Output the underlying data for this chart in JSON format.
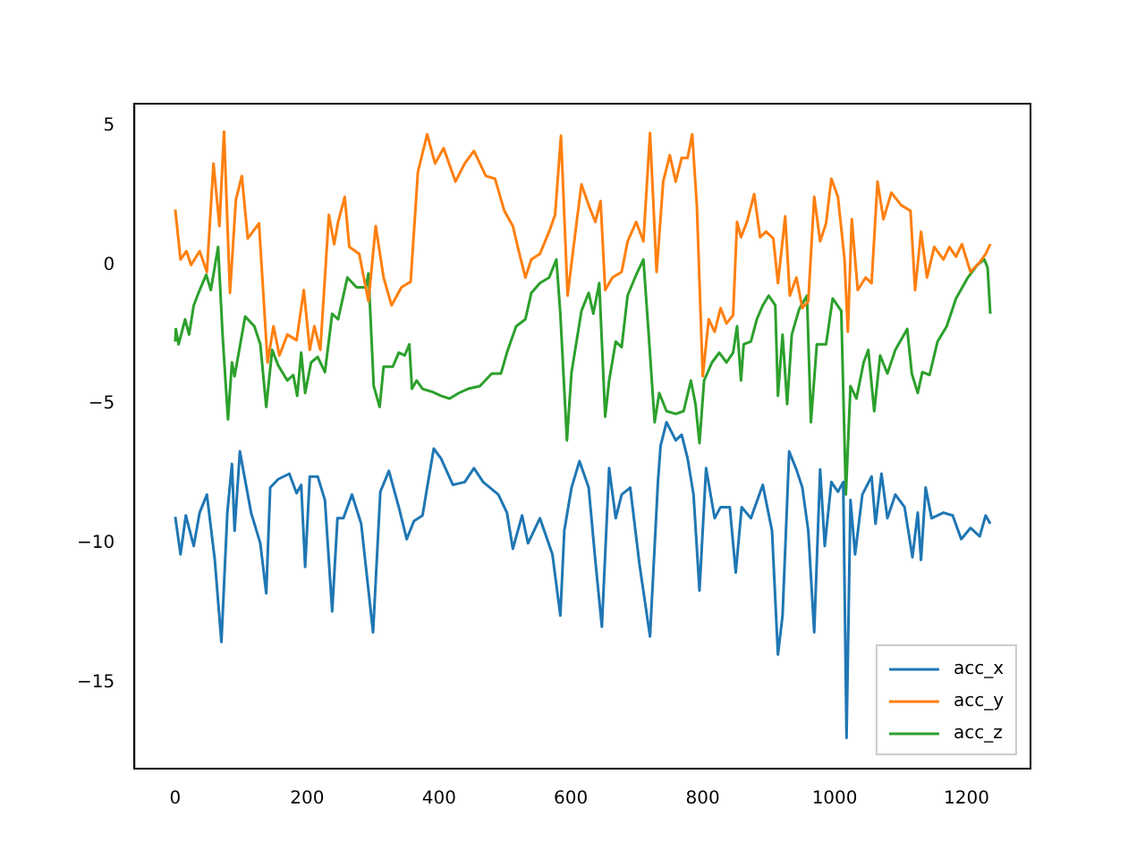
{
  "chart_data": {
    "type": "line",
    "xlim": [
      -62,
      1297
    ],
    "ylim": [
      -18.1,
      5.8
    ],
    "xticks": [
      0,
      200,
      400,
      600,
      800,
      1000,
      1200
    ],
    "yticks": [
      -15,
      -10,
      -5,
      0,
      5
    ],
    "grid": false,
    "legend": "bottom right",
    "series": [
      {
        "name": "acc_x",
        "color": "#1f77b4",
        "x": [
          0,
          8,
          16,
          28,
          37,
          48,
          60,
          70,
          79,
          86,
          90,
          98,
          115,
          129,
          138,
          144,
          156,
          173,
          184,
          191,
          197,
          204,
          216,
          227,
          238,
          246,
          255,
          268,
          282,
          300,
          311,
          324,
          339,
          351,
          362,
          375,
          382,
          392,
          403,
          421,
          439,
          453,
          467,
          490,
          503,
          512,
          526,
          535,
          553,
          572,
          584,
          590,
          601,
          613,
          627,
          637,
          647,
          658,
          668,
          677,
          690,
          704,
          720,
          732,
          736,
          745,
          759,
          768,
          777,
          786,
          795,
          805,
          818,
          827,
          841,
          850,
          859,
          873,
          891,
          905,
          914,
          921,
          931,
          942,
          951,
          960,
          969,
          978,
          985,
          995,
          1005,
          1013,
          1018,
          1024,
          1031,
          1042,
          1056,
          1062,
          1071,
          1080,
          1092,
          1106,
          1118,
          1126,
          1131,
          1138,
          1147,
          1165,
          1179,
          1192,
          1206,
          1220,
          1229,
          1236
        ],
        "values": [
          -9.05,
          -10.4,
          -9.0,
          -10.1,
          -8.9,
          -8.25,
          -10.6,
          -13.55,
          -8.9,
          -7.15,
          -9.55,
          -6.7,
          -8.9,
          -10.0,
          -11.8,
          -8.0,
          -7.7,
          -7.5,
          -8.2,
          -7.9,
          -10.85,
          -7.6,
          -7.6,
          -8.45,
          -12.45,
          -9.1,
          -9.1,
          -8.25,
          -9.3,
          -13.2,
          -8.15,
          -7.4,
          -8.7,
          -9.85,
          -9.2,
          -9.0,
          -8.0,
          -6.6,
          -6.95,
          -7.9,
          -7.8,
          -7.3,
          -7.8,
          -8.25,
          -8.9,
          -10.2,
          -9.0,
          -10.0,
          -9.1,
          -10.4,
          -12.6,
          -9.55,
          -8.0,
          -7.05,
          -8.0,
          -10.6,
          -13.0,
          -7.3,
          -9.1,
          -8.25,
          -8.0,
          -10.75,
          -13.35,
          -7.8,
          -6.5,
          -5.65,
          -6.3,
          -6.1,
          -6.95,
          -8.25,
          -11.7,
          -7.3,
          -9.1,
          -8.7,
          -8.7,
          -11.05,
          -8.7,
          -9.1,
          -7.9,
          -9.55,
          -14.0,
          -12.6,
          -6.7,
          -7.35,
          -8.0,
          -9.55,
          -13.2,
          -7.35,
          -10.1,
          -7.8,
          -8.15,
          -7.8,
          -17.0,
          -8.45,
          -10.4,
          -8.25,
          -7.6,
          -9.3,
          -7.5,
          -9.1,
          -8.25,
          -8.7,
          -10.5,
          -8.9,
          -10.6,
          -8.0,
          -9.1,
          -8.9,
          -9.0,
          -9.85,
          -9.45,
          -9.75,
          -9.0,
          -9.3
        ]
      },
      {
        "name": "acc_y",
        "color": "#ff7f0e",
        "x": [
          0,
          8,
          17,
          24,
          37,
          48,
          58,
          67,
          74,
          83,
          92,
          101,
          110,
          127,
          140,
          149,
          158,
          170,
          184,
          195,
          204,
          211,
          220,
          233,
          241,
          247,
          257,
          264,
          279,
          293,
          304,
          316,
          328,
          343,
          357,
          368,
          382,
          394,
          407,
          425,
          439,
          453,
          471,
          485,
          499,
          512,
          521,
          531,
          540,
          553,
          567,
          576,
          585,
          595,
          604,
          616,
          627,
          637,
          645,
          652,
          663,
          677,
          686,
          699,
          710,
          720,
          730,
          740,
          750,
          759,
          768,
          777,
          784,
          791,
          800,
          809,
          818,
          827,
          836,
          846,
          852,
          858,
          867,
          878,
          887,
          896,
          907,
          914,
          925,
          932,
          942,
          951,
          960,
          969,
          978,
          987,
          995,
          1005,
          1015,
          1020,
          1026,
          1035,
          1047,
          1056,
          1065,
          1074,
          1086,
          1101,
          1115,
          1122,
          1131,
          1140,
          1151,
          1165,
          1174,
          1184,
          1193,
          1206,
          1220,
          1229,
          1236
        ],
        "values": [
          2.0,
          0.2,
          0.5,
          0.0,
          0.5,
          -0.25,
          3.65,
          1.4,
          4.8,
          -1.0,
          2.35,
          3.2,
          0.95,
          1.5,
          -3.5,
          -2.2,
          -3.25,
          -2.5,
          -2.7,
          -0.9,
          -3.05,
          -2.2,
          -3.05,
          1.8,
          0.75,
          1.55,
          2.45,
          0.65,
          0.4,
          -1.3,
          1.4,
          -0.45,
          -1.45,
          -0.8,
          -0.6,
          3.35,
          4.7,
          3.65,
          4.2,
          3.0,
          3.65,
          4.1,
          3.2,
          3.1,
          1.95,
          1.4,
          0.5,
          -0.45,
          0.2,
          0.4,
          1.2,
          1.8,
          4.65,
          -1.1,
          0.65,
          2.9,
          2.15,
          1.55,
          2.3,
          -0.9,
          -0.45,
          -0.25,
          0.85,
          1.55,
          0.85,
          4.75,
          -0.25,
          3.0,
          3.95,
          3.0,
          3.85,
          3.85,
          4.7,
          2.15,
          -4.0,
          -1.95,
          -2.4,
          -1.55,
          -2.1,
          -1.8,
          1.55,
          1.0,
          1.55,
          2.55,
          1.0,
          1.2,
          0.95,
          -0.65,
          1.75,
          -1.1,
          -0.45,
          -1.55,
          -1.3,
          2.45,
          0.85,
          1.5,
          3.1,
          2.45,
          0.2,
          -2.4,
          1.65,
          -0.9,
          -0.45,
          -0.65,
          3.0,
          1.65,
          2.6,
          2.15,
          1.95,
          -0.9,
          1.2,
          -0.45,
          0.65,
          0.2,
          0.65,
          0.3,
          0.75,
          -0.25,
          0.1,
          0.4,
          0.75
        ]
      },
      {
        "name": "acc_z",
        "color": "#2ca02c",
        "x": [
          0,
          1,
          5,
          15,
          21,
          28,
          37,
          47,
          54,
          65,
          72,
          80,
          86,
          90,
          106,
          120,
          129,
          138,
          147,
          156,
          170,
          179,
          185,
          191,
          197,
          206,
          216,
          227,
          238,
          247,
          261,
          275,
          289,
          293,
          301,
          310,
          316,
          330,
          339,
          348,
          355,
          359,
          366,
          375,
          389,
          403,
          416,
          430,
          444,
          462,
          480,
          494,
          503,
          517,
          531,
          540,
          553,
          567,
          578,
          584,
          594,
          601,
          616,
          627,
          634,
          643,
          652,
          658,
          668,
          677,
          686,
          699,
          710,
          718,
          727,
          734,
          745,
          759,
          771,
          782,
          789,
          795,
          802,
          814,
          825,
          836,
          846,
          852,
          858,
          862,
          873,
          882,
          891,
          900,
          910,
          914,
          921,
          928,
          935,
          946,
          958,
          964,
          973,
          987,
          997,
          1010,
          1017,
          1024,
          1033,
          1044,
          1051,
          1060,
          1069,
          1080,
          1092,
          1110,
          1117,
          1126,
          1133,
          1144,
          1156,
          1170,
          1184,
          1202,
          1216,
          1227,
          1232,
          1236
        ],
        "values": [
          -2.75,
          -2.3,
          -2.85,
          -1.95,
          -2.5,
          -1.45,
          -0.9,
          -0.35,
          -0.9,
          0.65,
          -2.6,
          -5.55,
          -3.5,
          -4.0,
          -1.85,
          -2.2,
          -2.85,
          -5.1,
          -3.05,
          -3.6,
          -4.15,
          -3.95,
          -4.7,
          -3.15,
          -4.6,
          -3.5,
          -3.3,
          -3.85,
          -1.75,
          -1.95,
          -0.45,
          -0.8,
          -0.8,
          -0.3,
          -4.35,
          -5.1,
          -3.65,
          -3.65,
          -3.15,
          -3.25,
          -2.85,
          -4.45,
          -4.15,
          -4.45,
          -4.55,
          -4.7,
          -4.8,
          -4.6,
          -4.45,
          -4.35,
          -3.9,
          -3.9,
          -3.15,
          -2.2,
          -1.95,
          -1.0,
          -0.65,
          -0.45,
          0.2,
          -1.75,
          -6.3,
          -3.85,
          -1.65,
          -1.0,
          -1.75,
          -0.65,
          -5.45,
          -4.15,
          -2.75,
          -2.95,
          -1.1,
          -0.35,
          0.2,
          -2.5,
          -5.65,
          -4.6,
          -5.25,
          -5.35,
          -5.25,
          -4.15,
          -5.0,
          -6.4,
          -4.15,
          -3.5,
          -3.15,
          -3.5,
          -3.15,
          -2.2,
          -4.15,
          -2.85,
          -2.75,
          -1.95,
          -1.45,
          -1.1,
          -1.45,
          -4.7,
          -2.5,
          -5.0,
          -2.5,
          -1.6,
          -1.1,
          -5.65,
          -2.85,
          -2.85,
          -1.2,
          -1.65,
          -8.25,
          -4.35,
          -4.8,
          -3.5,
          -3.05,
          -5.25,
          -3.25,
          -3.9,
          -3.05,
          -2.3,
          -3.9,
          -4.6,
          -3.85,
          -3.95,
          -2.75,
          -2.2,
          -1.2,
          -0.45,
          0.0,
          0.2,
          -0.1,
          -1.75
        ]
      }
    ]
  }
}
